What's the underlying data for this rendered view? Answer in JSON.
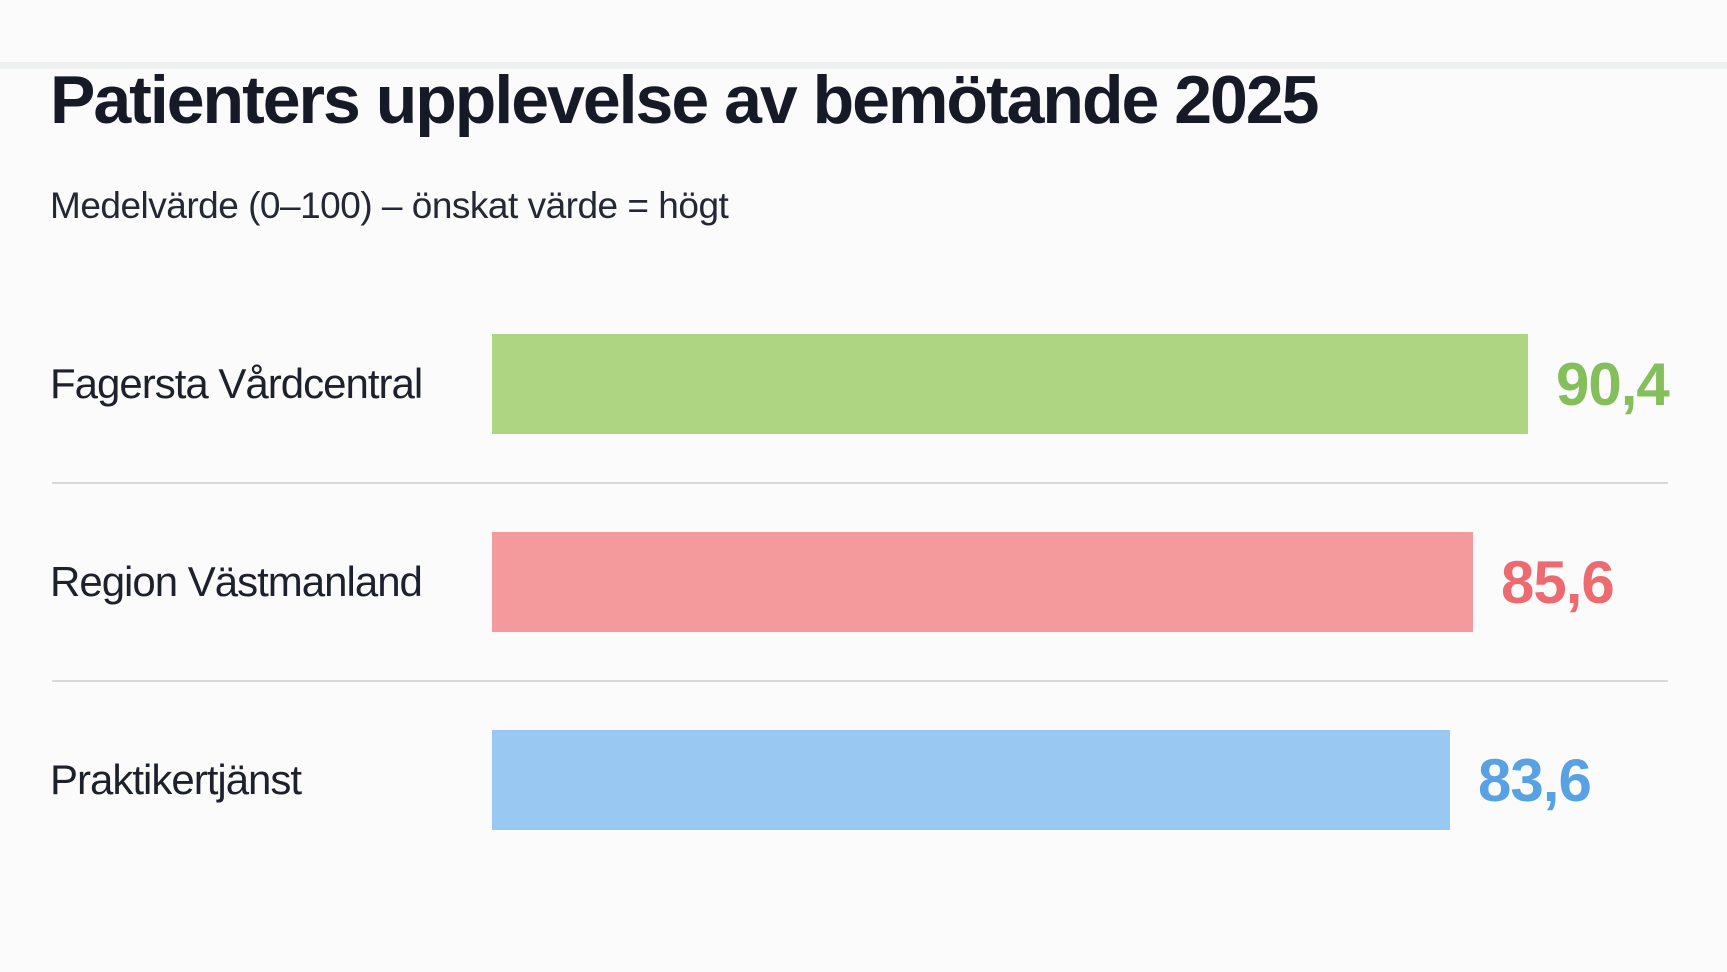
{
  "header": {
    "title": "Patienters upplevelse av bemötande 2025",
    "subtitle": "Medelvärde (0–100) – önskat värde = högt"
  },
  "chart_data": {
    "type": "bar",
    "orientation": "horizontal",
    "title": "Patienters upplevelse av bemötande 2025",
    "subtitle": "Medelvärde (0–100) – önskat värde = högt",
    "categories": [
      "Fagersta Vårdcentral",
      "Region Västmanland",
      "Praktikertjänst"
    ],
    "values": [
      90.4,
      85.6,
      83.6
    ],
    "value_labels": [
      "90,4",
      "85,6",
      "83,6"
    ],
    "bar_colors": [
      "#aed581",
      "#f49a9d",
      "#99c9f2"
    ],
    "value_text_colors": [
      "#84bf5c",
      "#ed6b70",
      "#58a1e3"
    ],
    "xlim": [
      0,
      100
    ],
    "xlabel": "",
    "ylabel": "",
    "grid": false,
    "legend": false,
    "background_color": "#fbfbfb",
    "divider_color": "#d9d9d9"
  }
}
